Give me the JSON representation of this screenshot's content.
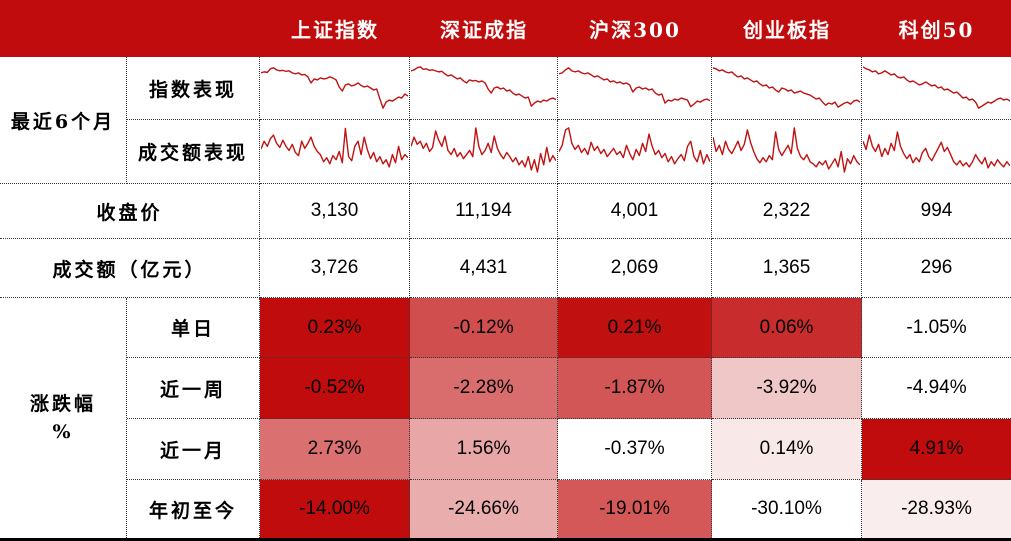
{
  "colors": {
    "header_bg": "#C00C0C",
    "heat_max": "#C00C0C",
    "heat_min": "#FFFFFF",
    "spark_line": "#C11212",
    "border_dotted": "#3a3a3a",
    "bottom_bar": "#000000",
    "header_text": "#FFFFFF",
    "body_text": "#000000"
  },
  "chart_data": {
    "type": "table",
    "columns": [
      "上证指数",
      "深证成指",
      "沪深300",
      "创业板指",
      "科创50"
    ],
    "spark_group": {
      "label": "最近6个月",
      "rows": [
        {
          "label": "指数表现",
          "type": "line",
          "series": [
            [
              0.8,
              0.82,
              0.81,
              0.88,
              0.9,
              0.86,
              0.84,
              0.85,
              0.83,
              0.84,
              0.8,
              0.78,
              0.8,
              0.76,
              0.77,
              0.72,
              0.6,
              0.68,
              0.66,
              0.7,
              0.68,
              0.69,
              0.72,
              0.7,
              0.66,
              0.52,
              0.44,
              0.56,
              0.58,
              0.54,
              0.56,
              0.6,
              0.55,
              0.52,
              0.54,
              0.5,
              0.46,
              0.48,
              0.28,
              0.1,
              0.22,
              0.26,
              0.24,
              0.28,
              0.32,
              0.3,
              0.38,
              0.34
            ],
            [
              0.84,
              0.86,
              0.9,
              0.92,
              0.87,
              0.88,
              0.85,
              0.86,
              0.84,
              0.82,
              0.83,
              0.78,
              0.74,
              0.76,
              0.72,
              0.68,
              0.7,
              0.64,
              0.6,
              0.66,
              0.64,
              0.65,
              0.62,
              0.64,
              0.6,
              0.48,
              0.4,
              0.5,
              0.52,
              0.48,
              0.5,
              0.44,
              0.46,
              0.4,
              0.36,
              0.38,
              0.34,
              0.3,
              0.32,
              0.14,
              0.2,
              0.24,
              0.22,
              0.26,
              0.24,
              0.28,
              0.3,
              0.27
            ],
            [
              0.78,
              0.8,
              0.86,
              0.9,
              0.84,
              0.82,
              0.84,
              0.8,
              0.78,
              0.8,
              0.76,
              0.72,
              0.74,
              0.7,
              0.66,
              0.68,
              0.62,
              0.64,
              0.6,
              0.62,
              0.58,
              0.6,
              0.56,
              0.42,
              0.5,
              0.52,
              0.48,
              0.5,
              0.46,
              0.48,
              0.4,
              0.36,
              0.38,
              0.2,
              0.26,
              0.24,
              0.28,
              0.26,
              0.3,
              0.28,
              0.26,
              0.13,
              0.18,
              0.24,
              0.22,
              0.26,
              0.28,
              0.25
            ],
            [
              0.9,
              0.88,
              0.84,
              0.86,
              0.82,
              0.8,
              0.82,
              0.76,
              0.72,
              0.74,
              0.68,
              0.7,
              0.66,
              0.62,
              0.64,
              0.58,
              0.54,
              0.56,
              0.5,
              0.52,
              0.46,
              0.42,
              0.5,
              0.48,
              0.44,
              0.46,
              0.4,
              0.42,
              0.44,
              0.4,
              0.38,
              0.36,
              0.32,
              0.28,
              0.3,
              0.22,
              0.16,
              0.2,
              0.18,
              0.22,
              0.12,
              0.16,
              0.2,
              0.22,
              0.18,
              0.24,
              0.26,
              0.22
            ],
            [
              0.92,
              0.88,
              0.86,
              0.82,
              0.84,
              0.78,
              0.8,
              0.84,
              0.8,
              0.76,
              0.78,
              0.72,
              0.7,
              0.72,
              0.66,
              0.62,
              0.64,
              0.6,
              0.56,
              0.58,
              0.62,
              0.58,
              0.54,
              0.56,
              0.5,
              0.52,
              0.46,
              0.48,
              0.44,
              0.4,
              0.42,
              0.36,
              0.3,
              0.32,
              0.26,
              0.28,
              0.22,
              0.1,
              0.14,
              0.18,
              0.22,
              0.2,
              0.24,
              0.28,
              0.3,
              0.26,
              0.28,
              0.24
            ]
          ]
        },
        {
          "label": "成交额表现",
          "type": "line",
          "series": [
            [
              0.55,
              0.7,
              0.6,
              0.75,
              0.82,
              0.66,
              0.58,
              0.72,
              0.6,
              0.52,
              0.64,
              0.48,
              0.42,
              0.7,
              0.56,
              0.66,
              0.78,
              0.6,
              0.5,
              0.44,
              0.3,
              0.38,
              0.26,
              0.42,
              0.34,
              0.5,
              0.28,
              0.95,
              0.4,
              0.32,
              0.6,
              0.7,
              0.44,
              0.78,
              0.54,
              0.36,
              0.48,
              0.3,
              0.4,
              0.26,
              0.34,
              0.2,
              0.44,
              0.28,
              0.6,
              0.34,
              0.44,
              0.38
            ],
            [
              0.6,
              0.78,
              0.64,
              0.7,
              0.56,
              0.66,
              0.5,
              0.58,
              0.9,
              0.72,
              0.6,
              0.8,
              0.52,
              0.44,
              0.56,
              0.4,
              0.48,
              0.36,
              0.44,
              0.52,
              0.4,
              0.96,
              0.6,
              0.44,
              0.52,
              0.66,
              0.48,
              0.8,
              0.56,
              0.44,
              0.36,
              0.48,
              0.4,
              0.3,
              0.38,
              0.24,
              0.32,
              0.2,
              0.4,
              0.14,
              0.34,
              0.1,
              0.46,
              0.24,
              0.58,
              0.3,
              0.42,
              0.32
            ],
            [
              0.5,
              0.62,
              0.92,
              0.96,
              0.66,
              0.54,
              0.62,
              0.48,
              0.56,
              0.44,
              0.68,
              0.52,
              0.6,
              0.46,
              0.54,
              0.4,
              0.48,
              0.56,
              0.44,
              0.5,
              0.38,
              0.62,
              0.46,
              0.34,
              0.54,
              0.42,
              0.66,
              0.5,
              0.84,
              0.6,
              0.44,
              0.52,
              0.38,
              0.46,
              0.3,
              0.4,
              0.26,
              0.36,
              0.44,
              0.32,
              0.6,
              0.7,
              0.4,
              0.3,
              0.52,
              0.26,
              0.44,
              0.3
            ],
            [
              0.78,
              0.5,
              0.62,
              0.44,
              0.7,
              0.54,
              0.46,
              0.58,
              0.7,
              0.52,
              0.64,
              0.92,
              0.68,
              0.5,
              0.36,
              0.28,
              0.38,
              0.3,
              0.42,
              0.34,
              0.88,
              0.54,
              0.42,
              0.52,
              0.62,
              0.46,
              0.96,
              0.56,
              0.4,
              0.34,
              0.44,
              0.3,
              0.26,
              0.2,
              0.3,
              0.24,
              0.32,
              0.16,
              0.26,
              0.36,
              0.2,
              0.5,
              0.1,
              0.36,
              0.26,
              0.42,
              0.3,
              0.24
            ],
            [
              0.7,
              0.54,
              0.82,
              0.6,
              0.5,
              0.64,
              0.4,
              0.56,
              0.44,
              0.66,
              0.52,
              0.88,
              0.6,
              0.46,
              0.36,
              0.44,
              0.28,
              0.38,
              0.3,
              0.48,
              0.56,
              0.4,
              0.32,
              0.44,
              0.56,
              0.68,
              0.5,
              0.58,
              0.44,
              0.3,
              0.24,
              0.32,
              0.22,
              0.28,
              0.2,
              0.3,
              0.44,
              0.34,
              0.26,
              0.38,
              0.18,
              0.3,
              0.22,
              0.34,
              0.26,
              0.2,
              0.3,
              0.22
            ]
          ]
        }
      ]
    },
    "value_rows": [
      {
        "label": "收盘价",
        "values": [
          3130,
          11194,
          4001,
          2322,
          994
        ]
      },
      {
        "label": "成交额（亿元）",
        "values": [
          3726,
          4431,
          2069,
          1365,
          296
        ]
      }
    ],
    "pct_group": {
      "label": "涨跌幅",
      "unit": "%",
      "heatmap": "per-row white-to-red scale",
      "rows": [
        {
          "label": "单日",
          "values": [
            0.23,
            -0.12,
            0.21,
            0.06,
            -1.05
          ]
        },
        {
          "label": "近一周",
          "values": [
            -0.52,
            -2.28,
            -1.87,
            -3.92,
            -4.94
          ]
        },
        {
          "label": "近一月",
          "values": [
            2.73,
            1.56,
            -0.37,
            0.14,
            4.91
          ]
        },
        {
          "label": "年初至今",
          "values": [
            -14.0,
            -24.66,
            -19.01,
            -30.1,
            -28.93
          ]
        }
      ]
    }
  }
}
